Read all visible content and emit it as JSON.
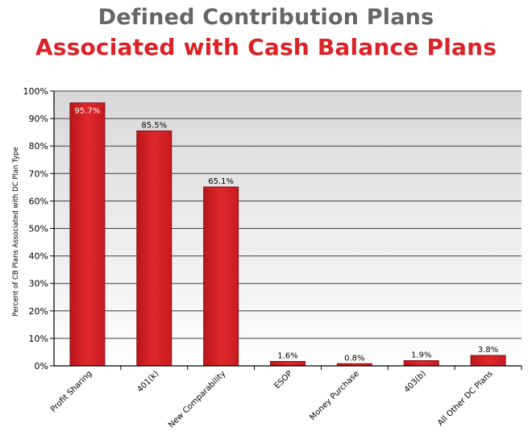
{
  "chart_data": {
    "type": "bar",
    "title": "Defined Contribution Plans",
    "subtitle": "Associated with Cash Balance Plans",
    "xlabel": "",
    "ylabel": "Percent of CB Plans Associated with DC Plan Type",
    "ylim": [
      0,
      100
    ],
    "yticks": [
      "0%",
      "10%",
      "20%",
      "30%",
      "40%",
      "50%",
      "60%",
      "70%",
      "80%",
      "90%",
      "100%"
    ],
    "categories": [
      "Profit Sharing",
      "401(k)",
      "New Comparability",
      "ESOP",
      "Money Purchase",
      "403(b)",
      "All Other DC Plans"
    ],
    "values": [
      95.7,
      85.5,
      65.1,
      1.6,
      0.8,
      1.9,
      3.8
    ],
    "data_labels": [
      "95.7%",
      "85.5%",
      "65.1%",
      "1.6%",
      "0.8%",
      "1.9%",
      "3.8%"
    ],
    "grid": true,
    "legend": "none",
    "colors": {
      "bar": "#dd2226",
      "bar_border": "#8b0f12",
      "plot_background": "#e6e6e6",
      "grid": "#3f3f3f",
      "title_primary": "#666666",
      "title_secondary": "#dd2226"
    }
  }
}
